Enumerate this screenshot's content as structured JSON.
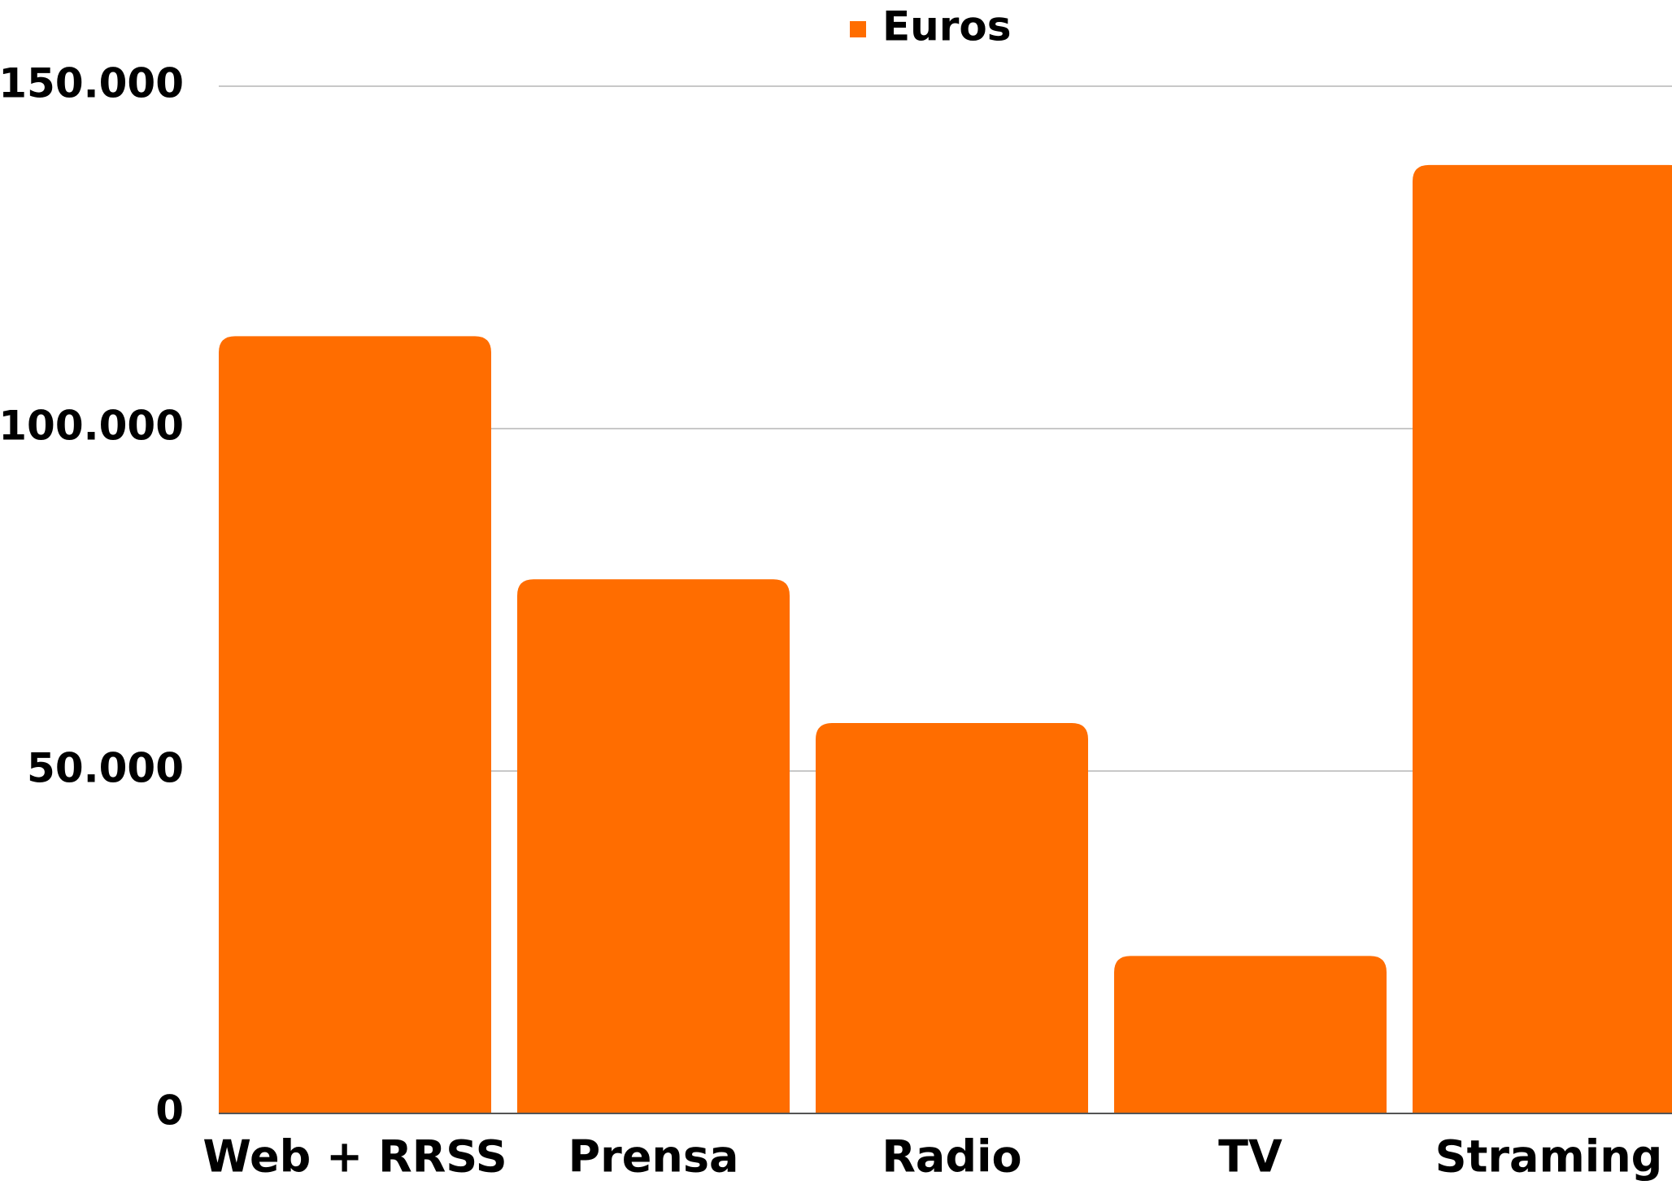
{
  "chart_data": {
    "type": "bar",
    "categories": [
      "Web + RRSS",
      "Prensa",
      "Radio",
      "TV",
      "Straming"
    ],
    "series": [
      {
        "name": "Euros",
        "color": "#ff6d00",
        "values": [
          113500,
          78000,
          57000,
          23000,
          138500
        ]
      }
    ],
    "ylim": [
      0,
      150000
    ],
    "yticks": [
      0,
      {
        "value": 50000,
        "label": "50.000"
      },
      {
        "value": 100000,
        "label": "100.000"
      },
      {
        "value": 150000,
        "label": "150.000"
      }
    ],
    "grid": true,
    "legend": "top"
  }
}
